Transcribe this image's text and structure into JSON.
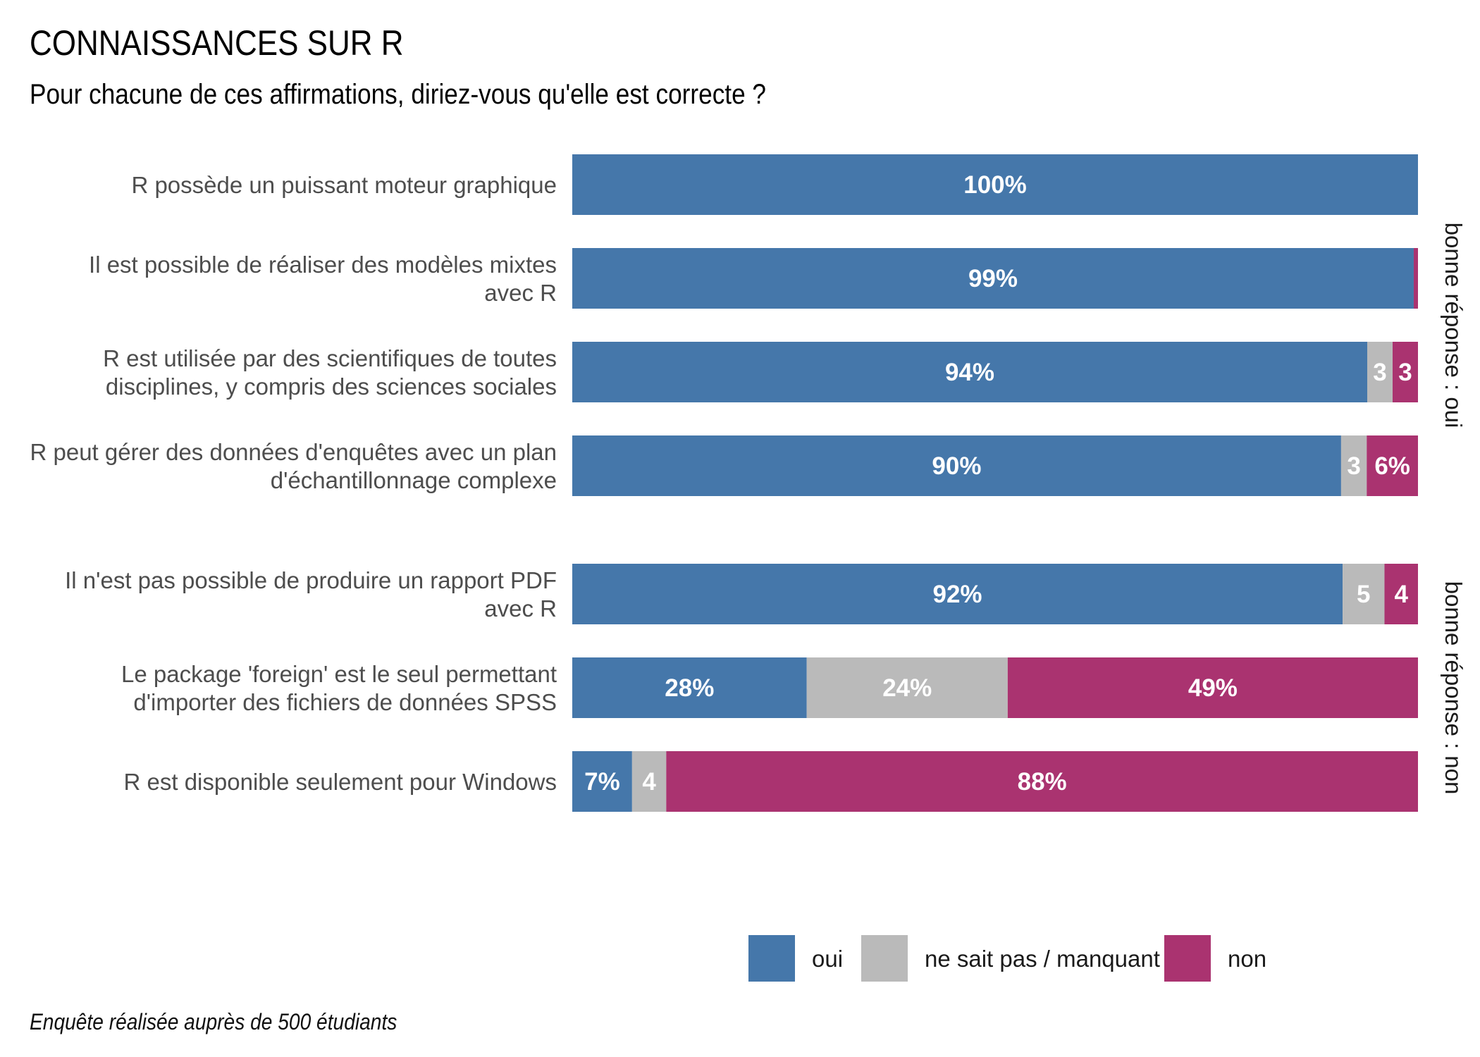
{
  "title": "CONNAISSANCES SUR R",
  "subtitle": "Pour chacune de ces affirmations, diriez-vous qu'elle est correcte ?",
  "caption": "Enquête réalisée auprès de 500 étudiants",
  "colors": {
    "oui": "#4577aa",
    "nsp": "#bababa",
    "non": "#aa3370"
  },
  "chart_data": {
    "type": "bar",
    "orientation": "horizontal",
    "stacked": true,
    "xlim": [
      0,
      100
    ],
    "grid": false,
    "legend_position": "bottom",
    "series": [
      {
        "name": "oui",
        "color": "#4577aa"
      },
      {
        "name": "ne sait pas / manquant",
        "color": "#bababa"
      },
      {
        "name": "non",
        "color": "#aa3370"
      }
    ],
    "groups": [
      {
        "label": "bonne réponse : oui",
        "rows": [
          {
            "lines": [
              "R possède un puissant moteur graphique"
            ],
            "values": [
              100,
              0,
              0
            ],
            "labels": [
              "100%",
              "",
              ""
            ]
          },
          {
            "lines": [
              "Il est possible de réaliser des modèles mixtes",
              "avec R"
            ],
            "values": [
              99,
              0,
              0.5
            ],
            "labels": [
              "99%",
              "",
              ""
            ]
          },
          {
            "lines": [
              "R est utilisée par des scientifiques de toutes",
              "disciplines, y compris des sciences sociales"
            ],
            "values": [
              94,
              3,
              3
            ],
            "labels": [
              "94%",
              "3",
              "3"
            ]
          },
          {
            "lines": [
              "R peut gérer des données d'enquêtes avec un plan",
              "d'échantillonnage complexe"
            ],
            "values": [
              90,
              3,
              6
            ],
            "labels": [
              "90%",
              "3",
              "6%"
            ]
          }
        ]
      },
      {
        "label": "bonne réponse : non",
        "rows": [
          {
            "lines": [
              "Il n'est pas possible de produire un rapport PDF",
              "avec R"
            ],
            "values": [
              92,
              5,
              4
            ],
            "labels": [
              "92%",
              "5",
              "4"
            ]
          },
          {
            "lines": [
              "Le package 'foreign' est le seul permettant",
              "d'importer des fichiers de données SPSS"
            ],
            "values": [
              28,
              24,
              49
            ],
            "labels": [
              "28%",
              "24%",
              "49%"
            ]
          },
          {
            "lines": [
              "R est disponible seulement pour Windows"
            ],
            "values": [
              7,
              4,
              88
            ],
            "labels": [
              "7%",
              "4",
              "88%"
            ]
          }
        ]
      }
    ]
  }
}
